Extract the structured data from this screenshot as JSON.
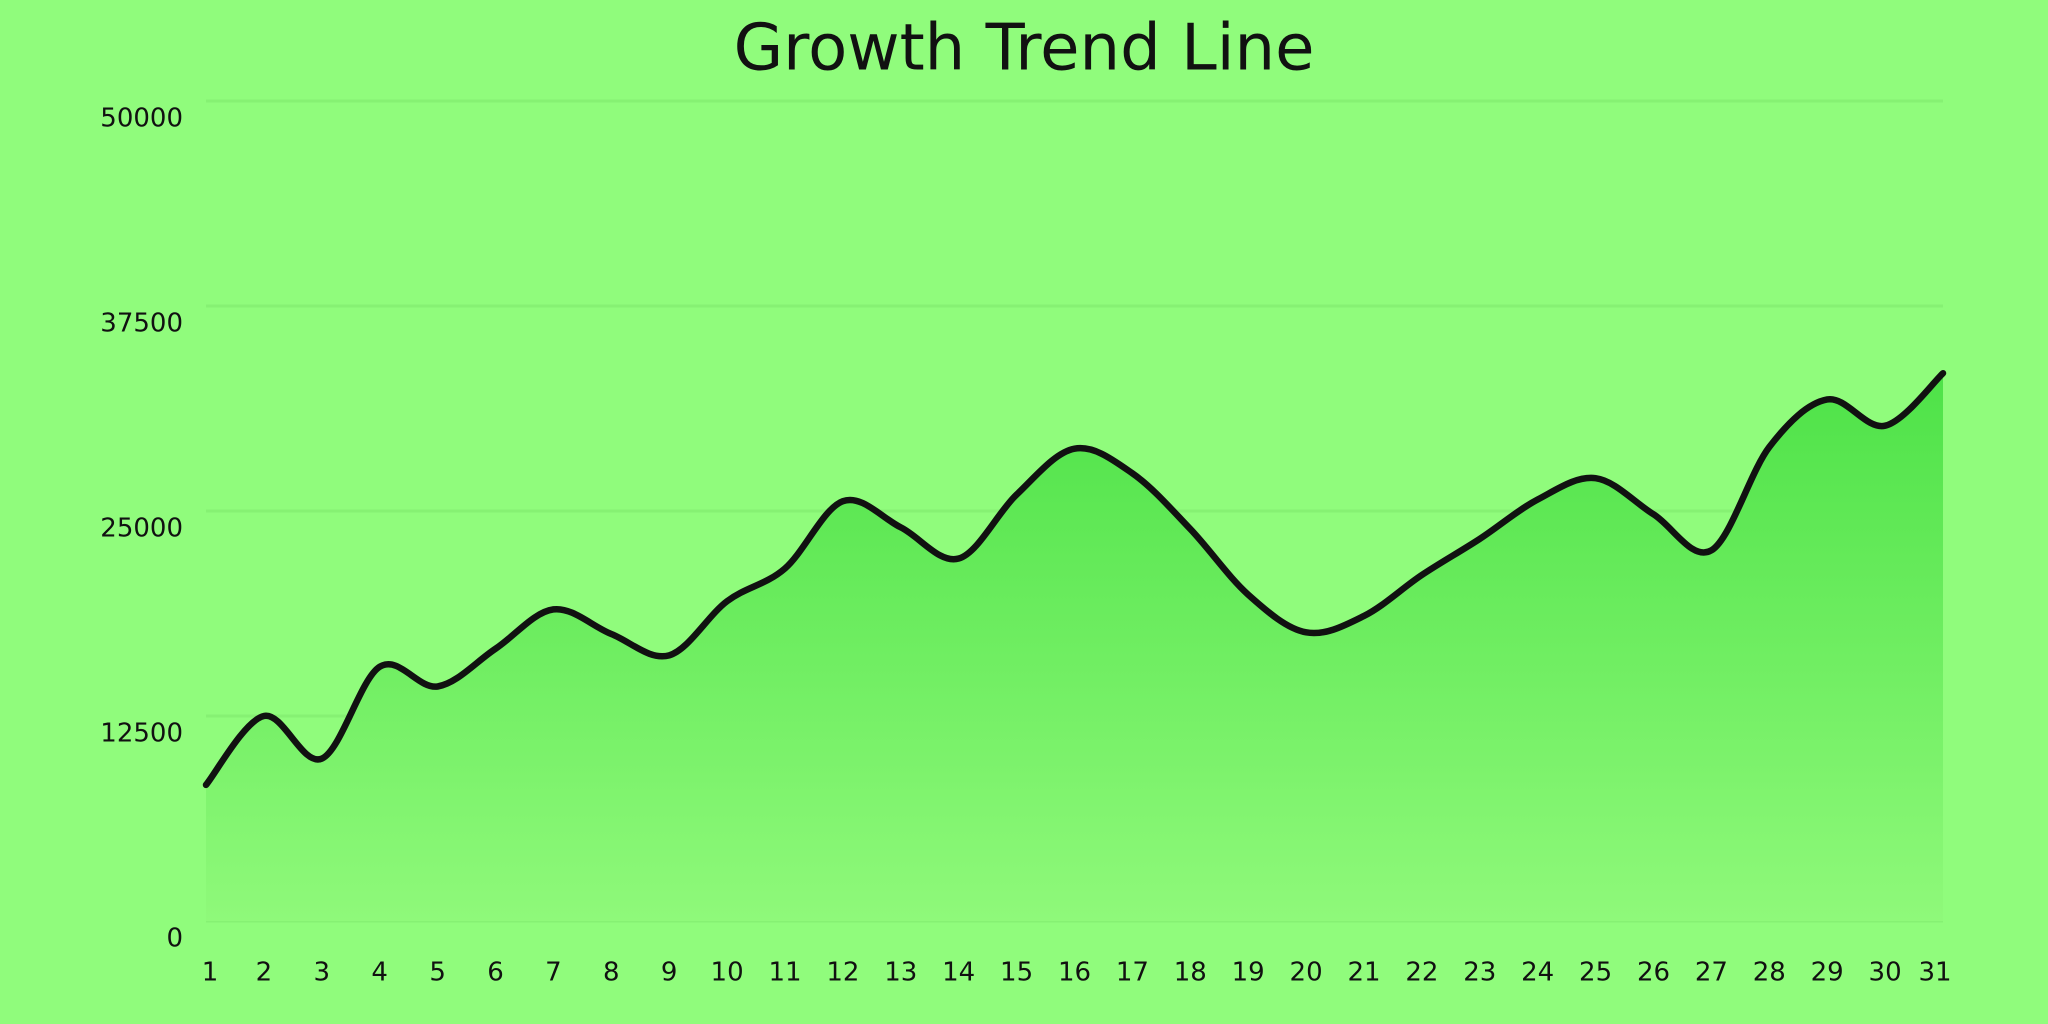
{
  "chart_data": {
    "type": "line",
    "title": "Growth Trend Line",
    "categories": [
      "1",
      "2",
      "3",
      "4",
      "5",
      "6",
      "7",
      "8",
      "9",
      "10",
      "11",
      "12",
      "13",
      "14",
      "15",
      "16",
      "17",
      "18",
      "19",
      "20",
      "21",
      "22",
      "23",
      "24",
      "25",
      "26",
      "27",
      "28",
      "29",
      "30",
      "31"
    ],
    "values": [
      8300,
      12500,
      9900,
      15500,
      14300,
      16600,
      19000,
      17500,
      16200,
      19500,
      21500,
      25600,
      24000,
      22100,
      26000,
      28800,
      27300,
      23900,
      19900,
      17600,
      18600,
      21100,
      23300,
      25700,
      27000,
      24800,
      22600,
      28900,
      31800,
      30200,
      33400
    ],
    "color": "#111111",
    "ylim": [
      0,
      50000
    ],
    "yticks": [
      0,
      12500,
      25000,
      37500,
      50000
    ],
    "grid": true
  }
}
